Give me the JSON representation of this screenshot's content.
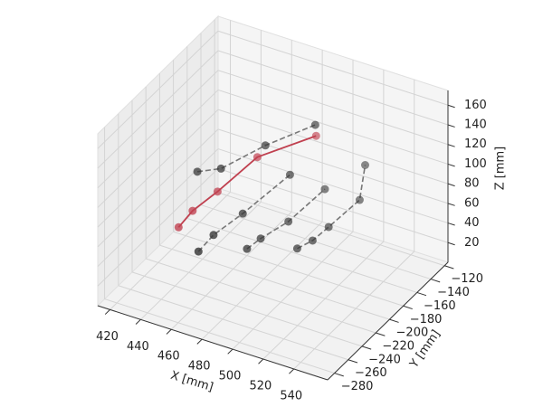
{
  "chart_data": {
    "type": "scatter3d",
    "xlabel": "X [mm]",
    "ylabel": "Y [mm]",
    "zlabel": "Z [mm]",
    "xlim": [
      412,
      562
    ],
    "ylim": [
      -290,
      -115
    ],
    "zlim": [
      0,
      175
    ],
    "xticks": [
      420,
      440,
      460,
      480,
      500,
      520,
      540
    ],
    "yticks": [
      {
        "value": -280,
        "label": "−280"
      },
      {
        "value": -260,
        "label": "−260"
      },
      {
        "value": -240,
        "label": "−240"
      },
      {
        "value": -220,
        "label": "−220"
      },
      {
        "value": -200,
        "label": "−200"
      },
      {
        "value": -180,
        "label": "−180"
      },
      {
        "value": -160,
        "label": "−160"
      },
      {
        "value": -140,
        "label": "−140"
      },
      {
        "value": -120,
        "label": "−120"
      }
    ],
    "zticks": [
      20,
      40,
      60,
      80,
      100,
      120,
      140,
      160
    ],
    "grid": true,
    "series": [
      {
        "color": "#777777",
        "marker_color": "#333333",
        "linestyle": "dashed",
        "x": [
          433,
          448,
          468,
          492
        ],
        "y": [
          -192,
          -191,
          -171,
          -152
        ],
        "z": [
          80,
          90,
          110,
          130
        ]
      },
      {
        "color": "#777777",
        "marker_color": "#333333",
        "linestyle": "dashed",
        "x": [
          449,
          453,
          464,
          480
        ],
        "y": [
          -226,
          -213,
          -195,
          -162
        ],
        "z": [
          30,
          40,
          55,
          80
        ]
      },
      {
        "color": "#777777",
        "marker_color": "#333333",
        "linestyle": "dashed",
        "x": [
          469,
          473,
          483,
          492
        ],
        "y": [
          -200,
          -189,
          -171,
          -138
        ],
        "z": [
          25,
          30,
          40,
          55
        ]
      },
      {
        "color": "#777777",
        "marker_color": "#333333",
        "linestyle": "dashed",
        "x": [
          491,
          497,
          503,
          512,
          512
        ],
        "y": [
          -176,
          -167,
          -157,
          -132,
          -124
        ],
        "z": [
          20,
          25,
          35,
          50,
          80
        ]
      },
      {
        "color": "#c0404f",
        "marker_color": "#c0404f",
        "linestyle": "solid",
        "x": [
          432,
          438,
          448,
          465,
          493
        ],
        "y": [
          -217,
          -210,
          -196,
          -176,
          -153
        ],
        "z": [
          40,
          55,
          70,
          100,
          120
        ]
      }
    ]
  }
}
